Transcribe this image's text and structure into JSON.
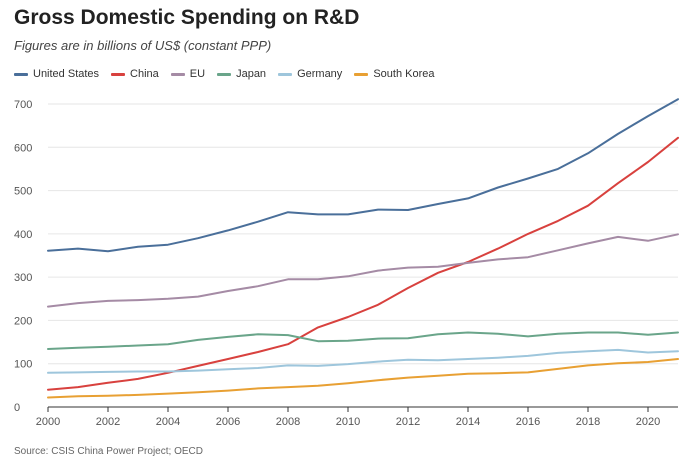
{
  "title": "Gross Domestic Spending on R&D",
  "subtitle": "Figures are in billions of US$ (constant PPP)",
  "source": "Source: CSIS China Power Project; OECD",
  "chart_data": {
    "type": "line",
    "title": "Gross Domestic Spending on R&D",
    "subtitle": "Figures are in billions of US$ (constant PPP)",
    "xlabel": "",
    "ylabel": "",
    "x": [
      2000,
      2001,
      2002,
      2003,
      2004,
      2005,
      2006,
      2007,
      2008,
      2009,
      2010,
      2011,
      2012,
      2013,
      2014,
      2015,
      2016,
      2017,
      2018,
      2019,
      2020,
      2021
    ],
    "xticks": [
      2000,
      2002,
      2004,
      2006,
      2008,
      2010,
      2012,
      2014,
      2016,
      2018,
      2020
    ],
    "yticks": [
      0,
      100,
      200,
      300,
      400,
      500,
      600,
      700
    ],
    "xlim": [
      2000,
      2021
    ],
    "ylim": [
      0,
      700
    ],
    "grid": true,
    "legend_position": "top-left",
    "series": [
      {
        "name": "United States",
        "color": "#4a6f9a",
        "values": [
          361,
          366,
          360,
          370,
          375,
          390,
          408,
          428,
          450,
          445,
          445,
          456,
          455,
          469,
          482,
          507,
          528,
          550,
          586,
          631,
          672,
          711
        ]
      },
      {
        "name": "China",
        "color": "#d8413e",
        "values": [
          40,
          46,
          56,
          65,
          79,
          95,
          111,
          127,
          145,
          184,
          208,
          236,
          275,
          310,
          335,
          366,
          400,
          430,
          465,
          517,
          566,
          622
        ]
      },
      {
        "name": "EU",
        "color": "#a58ba5",
        "values": [
          232,
          240,
          245,
          247,
          250,
          255,
          268,
          279,
          295,
          295,
          302,
          315,
          322,
          324,
          333,
          341,
          346,
          362,
          378,
          393,
          384,
          399
        ]
      },
      {
        "name": "Japan",
        "color": "#6aa58a",
        "values": [
          134,
          137,
          139,
          142,
          145,
          155,
          162,
          168,
          166,
          152,
          153,
          158,
          159,
          168,
          172,
          169,
          163,
          169,
          172,
          172,
          167,
          172
        ]
      },
      {
        "name": "Germany",
        "color": "#9ec6dc",
        "values": [
          79,
          80,
          81,
          82,
          82,
          84,
          87,
          90,
          96,
          95,
          99,
          105,
          109,
          108,
          111,
          114,
          118,
          125,
          129,
          132,
          126,
          129
        ]
      },
      {
        "name": "South Korea",
        "color": "#e8a033",
        "values": [
          22,
          25,
          26,
          28,
          31,
          34,
          38,
          43,
          46,
          49,
          55,
          62,
          68,
          72,
          77,
          78,
          80,
          88,
          96,
          101,
          104,
          111
        ]
      }
    ]
  }
}
